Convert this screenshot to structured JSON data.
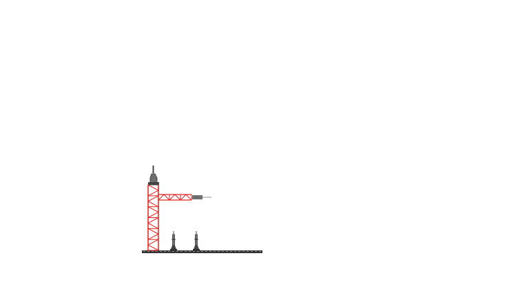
{
  "scene": {
    "background": "#ffffff",
    "tower_color": "#e0201c",
    "metal_dark": "#444444",
    "metal_mid": "#6e6e6e",
    "cable_color": "#b4b4b4",
    "ground_color": "#333333",
    "ground_dash_color": "#8a8a8a"
  },
  "objects": {
    "tower": {
      "icon": "launch-tower-icon",
      "segments": 6
    },
    "gantry_arm": {
      "icon": "gantry-arm-icon",
      "segments": 3
    },
    "rockets": [
      {
        "icon": "rocket-icon"
      },
      {
        "icon": "rocket-icon"
      }
    ]
  }
}
